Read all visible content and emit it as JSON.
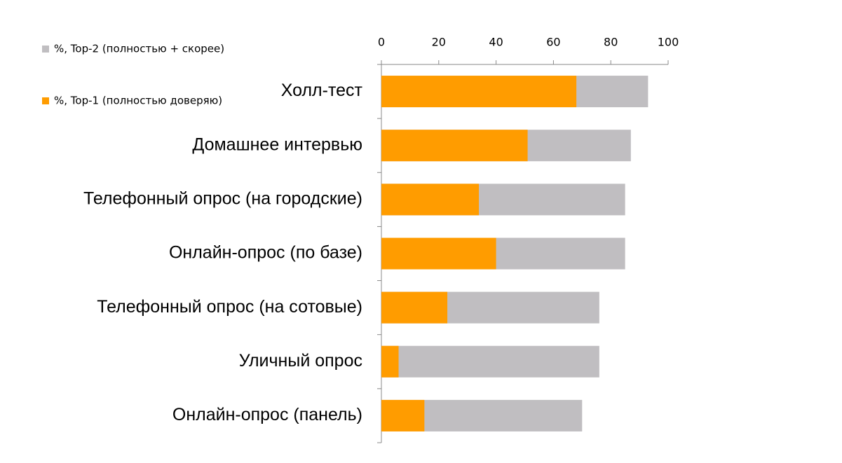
{
  "chart_data": {
    "type": "bar",
    "orientation": "horizontal",
    "overlap": true,
    "categories": [
      "Холл-тест",
      "Домашнее интервью",
      "Телефонный опрос (на городские)",
      "Онлайн-опрос (по базе)",
      "Телефонный опрос (на сотовые)",
      "Уличный опрос",
      "Онлайн-опрос (панель)"
    ],
    "series": [
      {
        "name": "%, Top-2 (полностью + скорее)",
        "color": "#c0bec1",
        "values": [
          93,
          87,
          85,
          85,
          76,
          76,
          70
        ]
      },
      {
        "name": "%, Top-1 (полностью доверяю)",
        "color": "#ff9c00",
        "values": [
          68,
          51,
          34,
          40,
          23,
          6,
          15
        ]
      }
    ],
    "xlim": [
      0,
      100
    ],
    "xticks": [
      0,
      20,
      40,
      60,
      80,
      100
    ],
    "grid": false
  }
}
